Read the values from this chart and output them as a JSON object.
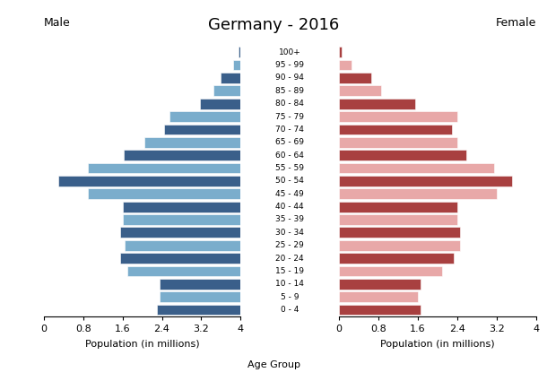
{
  "title": "Germany - 2016",
  "label_male": "Male",
  "label_female": "Female",
  "xlabel_left": "Population (in millions)",
  "xlabel_center": "Age Group",
  "xlabel_right": "Population (in millions)",
  "age_groups": [
    "0 - 4",
    "5 - 9",
    "10 - 14",
    "15 - 19",
    "20 - 24",
    "25 - 29",
    "30 - 34",
    "35 - 39",
    "40 - 44",
    "45 - 49",
    "50 - 54",
    "55 - 59",
    "60 - 64",
    "65 - 69",
    "70 - 74",
    "75 - 79",
    "80 - 84",
    "85 - 89",
    "90 - 94",
    "95 - 99",
    "100+"
  ],
  "male_values": [
    1.7,
    1.65,
    1.65,
    2.3,
    2.45,
    2.35,
    2.45,
    2.4,
    2.4,
    3.1,
    3.7,
    3.1,
    2.38,
    1.95,
    1.55,
    1.45,
    0.82,
    0.55,
    0.4,
    0.15,
    0.04
  ],
  "female_values": [
    1.65,
    1.6,
    1.65,
    2.1,
    2.32,
    2.45,
    2.45,
    2.4,
    2.4,
    3.2,
    3.52,
    3.15,
    2.58,
    2.4,
    2.3,
    2.4,
    1.55,
    0.85,
    0.65,
    0.25,
    0.05
  ],
  "male_color_dark": "#3a5f8a",
  "male_color_light": "#7aadcc",
  "female_color_dark": "#a84040",
  "female_color_light": "#e8a8a8",
  "xlim": 4.0,
  "xticks": [
    0,
    0.8,
    1.6,
    2.4,
    3.2,
    4.0
  ],
  "bar_height": 0.82,
  "background_color": "#ffffff",
  "label_fontsize": 6.5,
  "tick_fontsize": 8.0,
  "title_fontsize": 13,
  "side_label_fontsize": 9
}
